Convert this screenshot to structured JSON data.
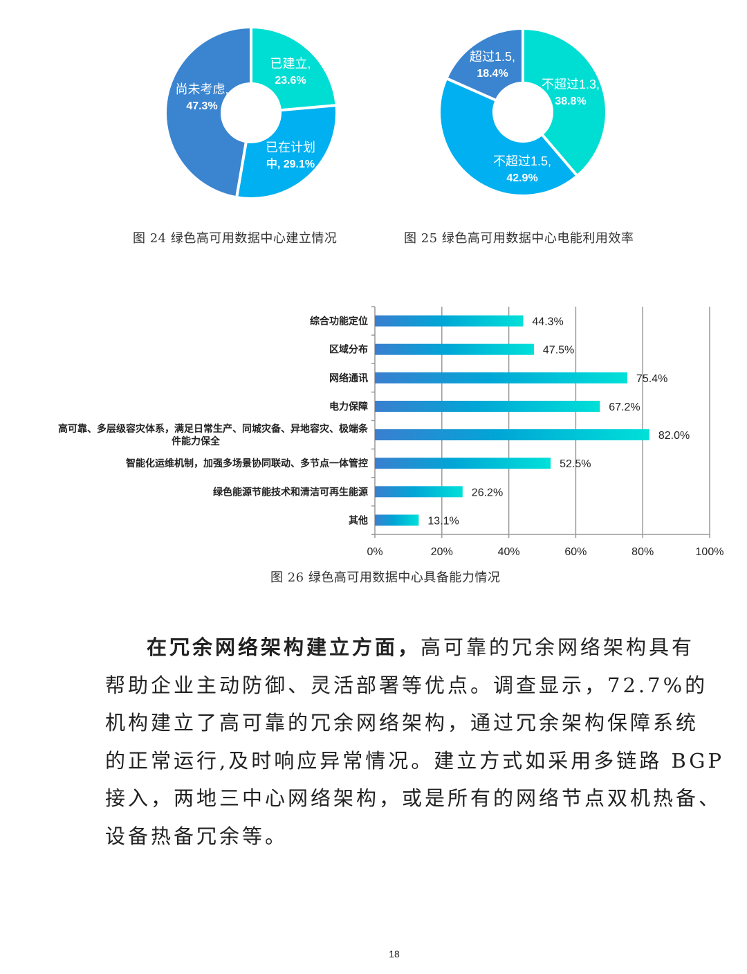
{
  "chart_data": [
    {
      "type": "pie",
      "variant": "donut",
      "slices": [
        {
          "label": "已建立,",
          "value_label": "23.6%",
          "value": 23.6,
          "color": "#00DED4"
        },
        {
          "label": "已在计划",
          "value_label": "中, 29.1%",
          "value": 29.1,
          "color": "#00B0F0"
        },
        {
          "label": "尚未考虑,",
          "value_label": "47.3%",
          "value": 47.3,
          "color": "#3A84D0"
        }
      ],
      "caption": "图 24  绿色高可用数据中心建立情况"
    },
    {
      "type": "pie",
      "variant": "donut",
      "slices": [
        {
          "label": "不超过1.3,",
          "value_label": "38.8%",
          "value": 38.8,
          "color": "#00DED4"
        },
        {
          "label": "不超过1.5,",
          "value_label": "42.9%",
          "value": 42.9,
          "color": "#00B0F0"
        },
        {
          "label": "超过1.5,",
          "value_label": "18.4%",
          "value": 18.4,
          "color": "#3A84D0"
        }
      ],
      "caption": "图  25  绿色高可用数据中心电能利用效率"
    },
    {
      "type": "bar",
      "orientation": "horizontal",
      "categories": [
        "综合功能定位",
        "区域分布",
        "网络通讯",
        "电力保障",
        "高可靠、多层级容灾体系，满足日常生产、同城灾备、异地容灾、极端条件能力保全",
        "智能化运维机制，加强多场景协同联动、多节点一体管控",
        "绿色能源节能技术和清洁可再生能源",
        "其他"
      ],
      "category_lines": [
        [
          "综合功能定位"
        ],
        [
          "区域分布"
        ],
        [
          "网络通讯"
        ],
        [
          "电力保障"
        ],
        [
          "高可靠、多层级容灾体系，满足日常生产、同城灾备、异地容灾、极端条",
          "件能力保全"
        ],
        [
          "智能化运维机制，加强多场景协同联动、多节点一体管控"
        ],
        [
          "绿色能源节能技术和清洁可再生能源"
        ],
        [
          "其他"
        ]
      ],
      "values": [
        44.3,
        47.5,
        75.4,
        67.2,
        82.0,
        52.5,
        26.2,
        13.1
      ],
      "data_labels": [
        "44.3%",
        "47.5%",
        "75.4%",
        "67.2%",
        "82.0%",
        "52.5%",
        "26.2%",
        "13.1%"
      ],
      "xlim": [
        0,
        100
      ],
      "xticks": [
        "0%",
        "20%",
        "40%",
        "60%",
        "80%",
        "100%"
      ],
      "grid": true,
      "bar_gradient": [
        "#3A7FCF",
        "#00A6D6",
        "#00E0D8"
      ],
      "caption": "图  26  绿色高可用数据中心具备能力情况"
    }
  ],
  "paragraph": {
    "lead_bold": "在冗余网络架构建立方面，",
    "lines": [
      "高可靠的冗余网络架构具有",
      "帮助企业主动防御、灵活部署等优点。调查显示，72.7%的",
      "机构建立了高可靠的冗余网络架构，通过冗余架构保障系统",
      "的正常运行,及时响应异常情况。建立方式如采用多链路 BGP",
      "接入，两地三中心网络架构，或是所有的网络节点双机热备、",
      "设备热备冗余等。"
    ]
  },
  "page_number": "18"
}
